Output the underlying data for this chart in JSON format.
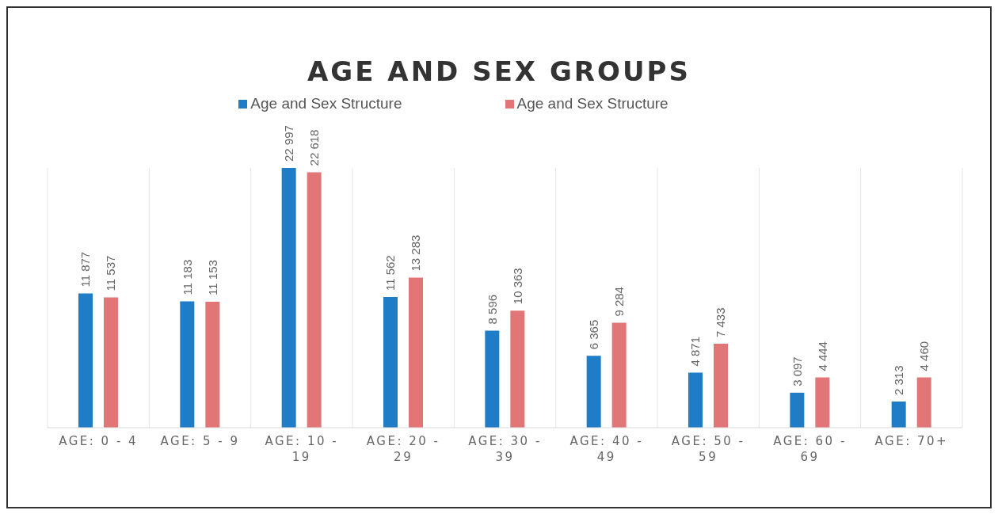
{
  "chart_data": {
    "type": "bar",
    "title": "AGE AND SEX GROUPS",
    "categories": [
      "AGE: 0 - 4",
      "AGE: 5 - 9",
      "AGE: 10 - 19",
      "AGE: 20 - 29",
      "AGE: 30 - 39",
      "AGE: 40 - 49",
      "AGE: 50 - 59",
      "AGE: 60 - 69",
      "AGE: 70+"
    ],
    "series": [
      {
        "name": "Age and Sex Structure",
        "color": "#1f7cc6",
        "values": [
          11877,
          11183,
          22997,
          11562,
          8596,
          6365,
          4871,
          3097,
          2313
        ],
        "value_labels": [
          "11 877",
          "11 183",
          "22 997",
          "11 562",
          "8 596",
          "6 365",
          "4 871",
          "3 097",
          "2 313"
        ]
      },
      {
        "name": "Age and Sex Structure",
        "color": "#e27676",
        "values": [
          11537,
          11153,
          22618,
          13283,
          10363,
          9284,
          7433,
          4444,
          4460
        ],
        "value_labels": [
          "11 537",
          "11 153",
          "22 618",
          "13 283",
          "10 363",
          "9 284",
          "7 433",
          "4 444",
          "4 460"
        ]
      }
    ],
    "legend": "top",
    "grid": "x"
  }
}
